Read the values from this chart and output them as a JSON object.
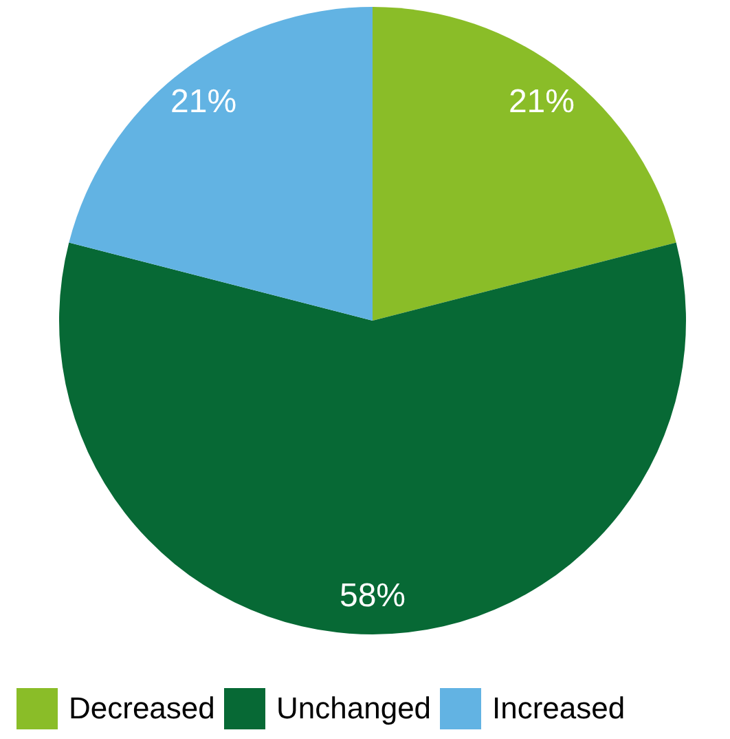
{
  "chart_data": {
    "type": "pie",
    "categories": [
      "Decreased",
      "Unchanged",
      "Increased"
    ],
    "values": [
      21,
      58,
      21
    ],
    "colors": [
      "#8abd28",
      "#076935",
      "#62b3e3"
    ],
    "value_labels": [
      "21%",
      "58%",
      "21%"
    ],
    "legend": "bottom"
  }
}
